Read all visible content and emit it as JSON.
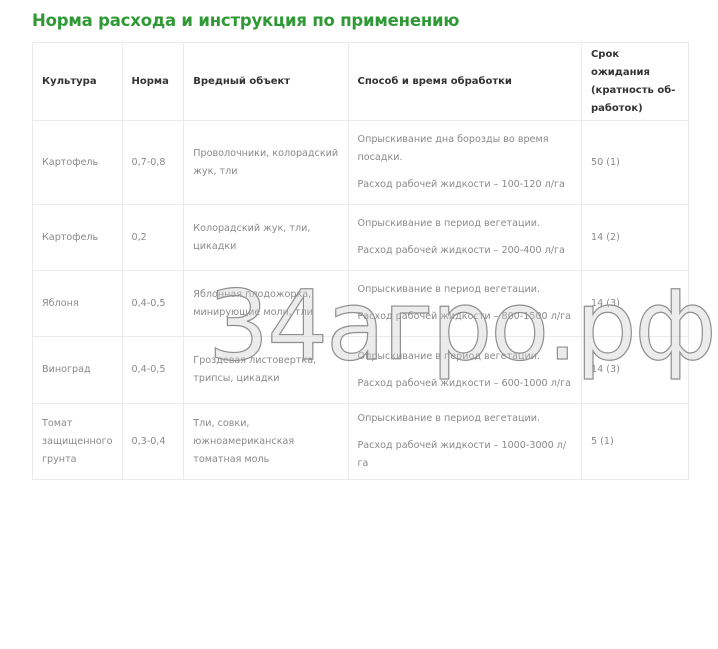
{
  "title": "Норма расхода и инструкция по применению",
  "table": {
    "headers": [
      "Культура",
      "Норма",
      "Вредный объект",
      "Способ и  время обработки",
      "Срок ожидания (кратность об-работок)"
    ],
    "rows": [
      {
        "crop": "Картофель",
        "rate": "0,7-0,8",
        "pest": "Проволочники, колорадский жук, тли",
        "method": "Опрыскивание дна борозды во время посадки.",
        "consumption": "Расход рабочей жидкости – 100-120 л/га",
        "wait": "50 (1)"
      },
      {
        "crop": "Картофель",
        "rate": "0,2",
        "pest": "Колорадский жук, тли, цикадки",
        "method": "Опрыскивание в период вегетации.",
        "consumption": "Расход рабочей жидкости – 200-400 л/га",
        "wait": "14 (2)"
      },
      {
        "crop": "Яблоня",
        "rate": "0,4-0,5",
        "pest": "Яблонная плодожорка, минирующие моли, тли",
        "method": "Опрыскивание в период вегетации.",
        "consumption": "Расход рабочей жидкости – 800-1500 л/га",
        "wait": "14 (3)"
      },
      {
        "crop": "Виноград",
        "rate": "0,4-0,5",
        "pest": "Гроздевая листовертка, трипсы, цикадки",
        "method": "Опрыскивание в период вегетации.",
        "consumption": "Расход рабочей жидкости – 600-1000 л/га",
        "wait": "14 (3)"
      },
      {
        "crop": "Томат защищенного грунта",
        "rate": "0,3-0,4",
        "pest": "Тли, совки, южноамериканская томатная моль",
        "method": "Опрыскивание в период вегетации.",
        "consumption": "Расход рабочей жидкости – 1000-3000 л/га",
        "wait": "5 (1)"
      }
    ]
  },
  "watermark": "34агро.рф",
  "colors": {
    "title": "#2f9a35",
    "border": "#ebebee"
  }
}
